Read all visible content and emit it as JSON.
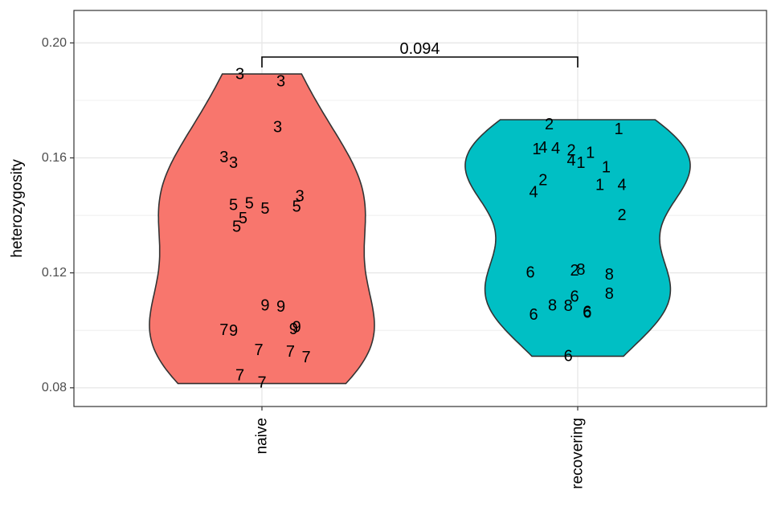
{
  "chart_data": {
    "type": "violin",
    "ylabel": "heterozygosity",
    "xlabel": "",
    "ylim": [
      0.0735,
      0.2113
    ],
    "yticks": [
      0.08,
      0.12,
      0.16,
      0.2
    ],
    "ytick_labels": [
      "0.08",
      "0.12",
      "0.16",
      "0.20"
    ],
    "grid": true,
    "categories": [
      "naive",
      "recovering"
    ],
    "colors": {
      "naive": "#F8766D",
      "recovering": "#00BFC4"
    },
    "comparison": {
      "from": "naive",
      "to": "recovering",
      "label": "0.094"
    },
    "groups": [
      {
        "name": "naive",
        "ymin": 0.0815,
        "ymax": 0.1892,
        "points": [
          {
            "dx": -0.07,
            "y": 0.1891,
            "label": "3"
          },
          {
            "dx": 0.06,
            "y": 0.1865,
            "label": "3"
          },
          {
            "dx": 0.05,
            "y": 0.1707,
            "label": "3"
          },
          {
            "dx": -0.12,
            "y": 0.1601,
            "label": "3"
          },
          {
            "dx": -0.09,
            "y": 0.1582,
            "label": "3"
          },
          {
            "dx": 0.12,
            "y": 0.1466,
            "label": "3"
          },
          {
            "dx": -0.09,
            "y": 0.1435,
            "label": "5"
          },
          {
            "dx": -0.04,
            "y": 0.1441,
            "label": "5"
          },
          {
            "dx": 0.01,
            "y": 0.1422,
            "label": "5"
          },
          {
            "dx": 0.11,
            "y": 0.143,
            "label": "5"
          },
          {
            "dx": -0.06,
            "y": 0.1389,
            "label": "5"
          },
          {
            "dx": -0.08,
            "y": 0.136,
            "label": "5"
          },
          {
            "dx": 0.01,
            "y": 0.1086,
            "label": "9"
          },
          {
            "dx": 0.06,
            "y": 0.1082,
            "label": "9"
          },
          {
            "dx": 0.11,
            "y": 0.101,
            "label": "9"
          },
          {
            "dx": 0.1,
            "y": 0.1004,
            "label": "9"
          },
          {
            "dx": -0.12,
            "y": 0.1,
            "label": "7"
          },
          {
            "dx": -0.09,
            "y": 0.0998,
            "label": "9"
          },
          {
            "dx": -0.01,
            "y": 0.093,
            "label": "7"
          },
          {
            "dx": 0.09,
            "y": 0.0925,
            "label": "7"
          },
          {
            "dx": 0.14,
            "y": 0.0906,
            "label": "7"
          },
          {
            "dx": -0.07,
            "y": 0.0842,
            "label": "7"
          },
          {
            "dx": 0.0,
            "y": 0.0818,
            "label": "7"
          }
        ]
      },
      {
        "name": "recovering",
        "ymin": 0.091,
        "ymax": 0.1733,
        "points": [
          {
            "dx": -0.09,
            "y": 0.1716,
            "label": "2"
          },
          {
            "dx": 0.13,
            "y": 0.17,
            "label": "1"
          },
          {
            "dx": -0.13,
            "y": 0.163,
            "label": "1"
          },
          {
            "dx": -0.11,
            "y": 0.1635,
            "label": "4"
          },
          {
            "dx": -0.07,
            "y": 0.1632,
            "label": "4"
          },
          {
            "dx": -0.02,
            "y": 0.1625,
            "label": "2"
          },
          {
            "dx": 0.04,
            "y": 0.1617,
            "label": "1"
          },
          {
            "dx": -0.02,
            "y": 0.159,
            "label": "4"
          },
          {
            "dx": 0.01,
            "y": 0.1582,
            "label": "1"
          },
          {
            "dx": 0.09,
            "y": 0.1567,
            "label": "1"
          },
          {
            "dx": -0.11,
            "y": 0.1522,
            "label": "2"
          },
          {
            "dx": 0.07,
            "y": 0.1505,
            "label": "1"
          },
          {
            "dx": 0.14,
            "y": 0.1505,
            "label": "4"
          },
          {
            "dx": -0.14,
            "y": 0.148,
            "label": "4"
          },
          {
            "dx": 0.14,
            "y": 0.14,
            "label": "2"
          },
          {
            "dx": -0.15,
            "y": 0.12,
            "label": "6"
          },
          {
            "dx": -0.01,
            "y": 0.1208,
            "label": "2"
          },
          {
            "dx": 0.01,
            "y": 0.121,
            "label": "8"
          },
          {
            "dx": 0.1,
            "y": 0.1193,
            "label": "8"
          },
          {
            "dx": -0.01,
            "y": 0.1116,
            "label": "6"
          },
          {
            "dx": 0.1,
            "y": 0.1127,
            "label": "8"
          },
          {
            "dx": -0.08,
            "y": 0.1086,
            "label": "8"
          },
          {
            "dx": -0.03,
            "y": 0.1084,
            "label": "8"
          },
          {
            "dx": 0.03,
            "y": 0.1063,
            "label": "6"
          },
          {
            "dx": 0.03,
            "y": 0.106,
            "label": "6"
          },
          {
            "dx": -0.14,
            "y": 0.1053,
            "label": "6"
          },
          {
            "dx": -0.03,
            "y": 0.091,
            "label": "6"
          }
        ]
      }
    ]
  }
}
